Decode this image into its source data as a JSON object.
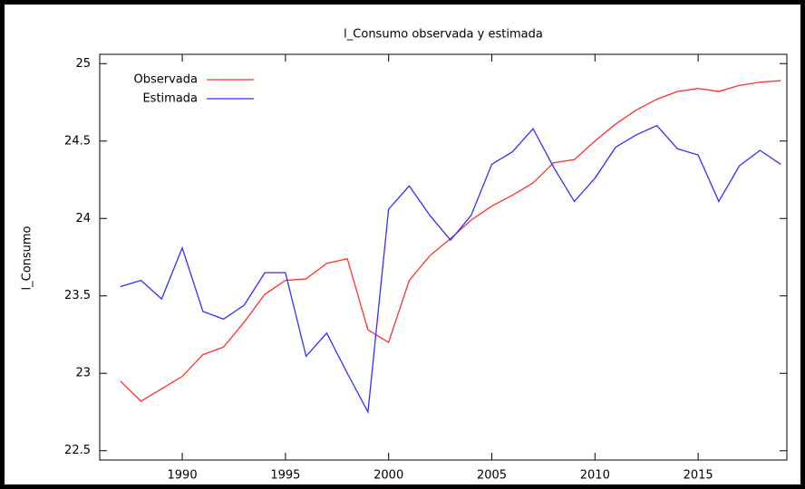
{
  "chart_data": {
    "type": "line",
    "title": "l_Consumo observada y estimada",
    "ylabel": "l_Consumo",
    "x": [
      1987,
      1988,
      1989,
      1990,
      1991,
      1992,
      1993,
      1994,
      1995,
      1996,
      1997,
      1998,
      1999,
      2000,
      2001,
      2002,
      2003,
      2004,
      2005,
      2006,
      2007,
      2008,
      2009,
      2010,
      2011,
      2012,
      2013,
      2014,
      2015,
      2016,
      2017,
      2018,
      2019
    ],
    "series": [
      {
        "name": "Observada",
        "color": "#ff3030",
        "values": [
          22.95,
          22.82,
          22.9,
          22.98,
          23.12,
          23.17,
          23.33,
          23.51,
          23.6,
          23.61,
          23.71,
          23.74,
          23.28,
          23.2,
          23.6,
          23.76,
          23.87,
          23.99,
          24.08,
          24.15,
          24.23,
          24.36,
          24.38,
          24.5,
          24.61,
          24.7,
          24.77,
          24.82,
          24.84,
          24.82,
          24.86,
          24.88,
          24.89
        ]
      },
      {
        "name": "Estimada",
        "color": "#3030ff",
        "values": [
          23.56,
          23.6,
          23.48,
          23.81,
          23.4,
          23.35,
          23.44,
          23.65,
          23.65,
          23.11,
          23.26,
          23.0,
          22.75,
          24.06,
          24.21,
          24.02,
          23.86,
          24.02,
          24.35,
          24.43,
          24.58,
          24.33,
          24.11,
          24.26,
          24.46,
          24.54,
          24.6,
          24.45,
          24.41,
          24.11,
          24.34,
          24.44,
          24.35
        ]
      }
    ],
    "xlim": [
      1986,
      2019.3
    ],
    "xticks": [
      1990,
      1995,
      2000,
      2005,
      2010,
      2015
    ],
    "ylim": [
      22.44,
      25.06
    ],
    "yticks": [
      22.5,
      23,
      23.5,
      24,
      24.5,
      25
    ],
    "legend": "upper-left"
  }
}
